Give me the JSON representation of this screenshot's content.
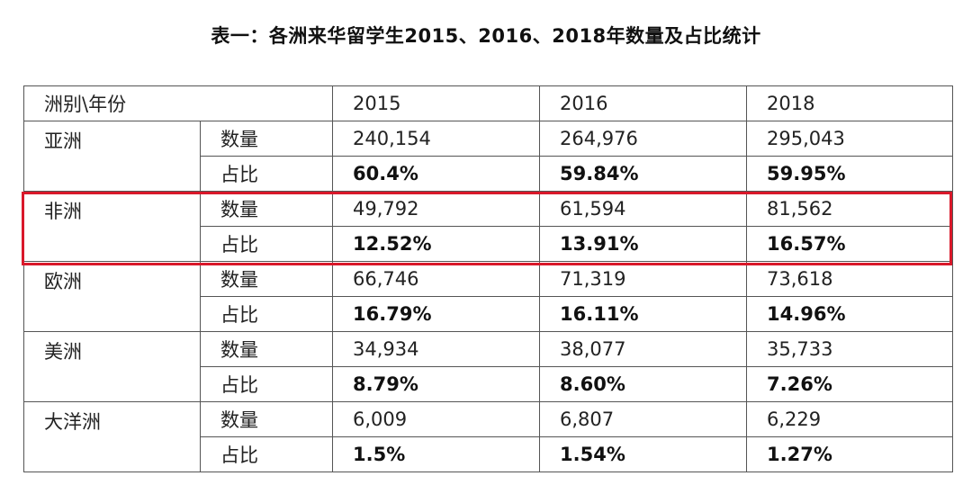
{
  "title": "表一：各洲来华留学生2015、2016、2018年数量及占比统计",
  "header": {
    "corner": "洲别\\年份",
    "years": [
      "2015",
      "2016",
      "2018"
    ]
  },
  "rows": [
    {
      "continent": "亚洲",
      "count_label": "数量",
      "share_label": "占比",
      "counts": [
        "240,154",
        "264,976",
        "295,043"
      ],
      "shares": [
        "60.4%",
        "59.84%",
        "59.95%"
      ]
    },
    {
      "continent": "非洲",
      "count_label": "数量",
      "share_label": "占比",
      "counts": [
        "49,792",
        "61,594",
        "81,562"
      ],
      "shares": [
        "12.52%",
        "13.91%",
        "16.57%"
      ]
    },
    {
      "continent": "欧洲",
      "count_label": "数量",
      "share_label": "占比",
      "counts": [
        "66,746",
        "71,319",
        "73,618"
      ],
      "shares": [
        "16.79%",
        "16.11%",
        "14.96%"
      ]
    },
    {
      "continent": "美洲",
      "count_label": "数量",
      "share_label": "占比",
      "counts": [
        "34,934",
        "38,077",
        "35,733"
      ],
      "shares": [
        "8.79%",
        "8.60%",
        "7.26%"
      ]
    },
    {
      "continent": "大洋洲",
      "count_label": "数量",
      "share_label": "占比",
      "counts": [
        "6,009",
        "6,807",
        "6,229"
      ],
      "shares": [
        "1.5%",
        "1.54%",
        "1.27%"
      ]
    }
  ],
  "highlight_color": "#d9182a"
}
